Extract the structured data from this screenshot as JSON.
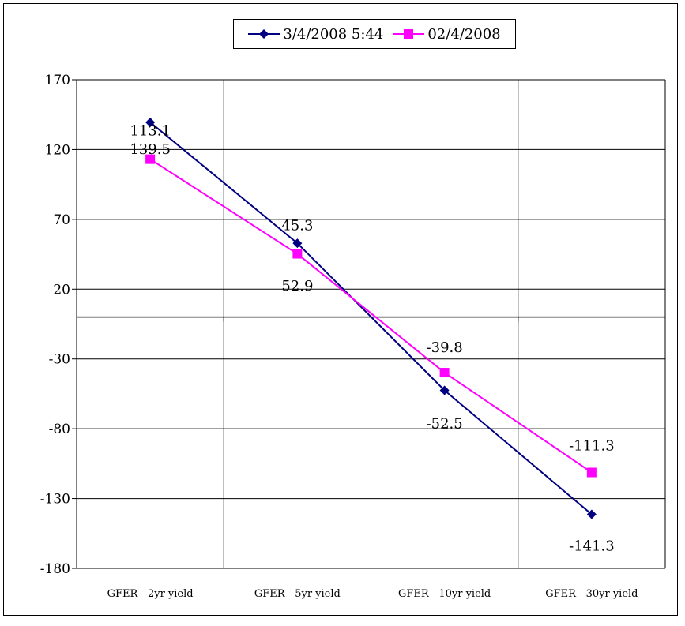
{
  "chart_data": {
    "type": "line",
    "categories": [
      "GFER - 2yr yield",
      "GFER - 5yr yield",
      "GFER - 10yr yield",
      "GFER - 30yr yield"
    ],
    "series": [
      {
        "name": "3/4/2008 5:44",
        "values": [
          139.5,
          52.9,
          -52.5,
          -141.3
        ],
        "color": "#000080",
        "marker": "diamond"
      },
      {
        "name": "02/4/2008",
        "values": [
          113.1,
          45.3,
          -39.8,
          -111.3
        ],
        "color": "#FF00FF",
        "marker": "square"
      }
    ],
    "data_labels": {
      "series_0": [
        "139.5",
        "52.9",
        "-52.5",
        "-141.3"
      ],
      "series_1": [
        "113.1",
        "45.3",
        "-39.8",
        "-111.3"
      ]
    },
    "yticks": [
      "170",
      "120",
      "70",
      "20",
      "-30",
      "-80",
      "-130",
      "-180"
    ],
    "ylim": [
      -180,
      170
    ],
    "grid": true,
    "legend_position": "top-center",
    "title": "",
    "xlabel": "",
    "ylabel": ""
  }
}
